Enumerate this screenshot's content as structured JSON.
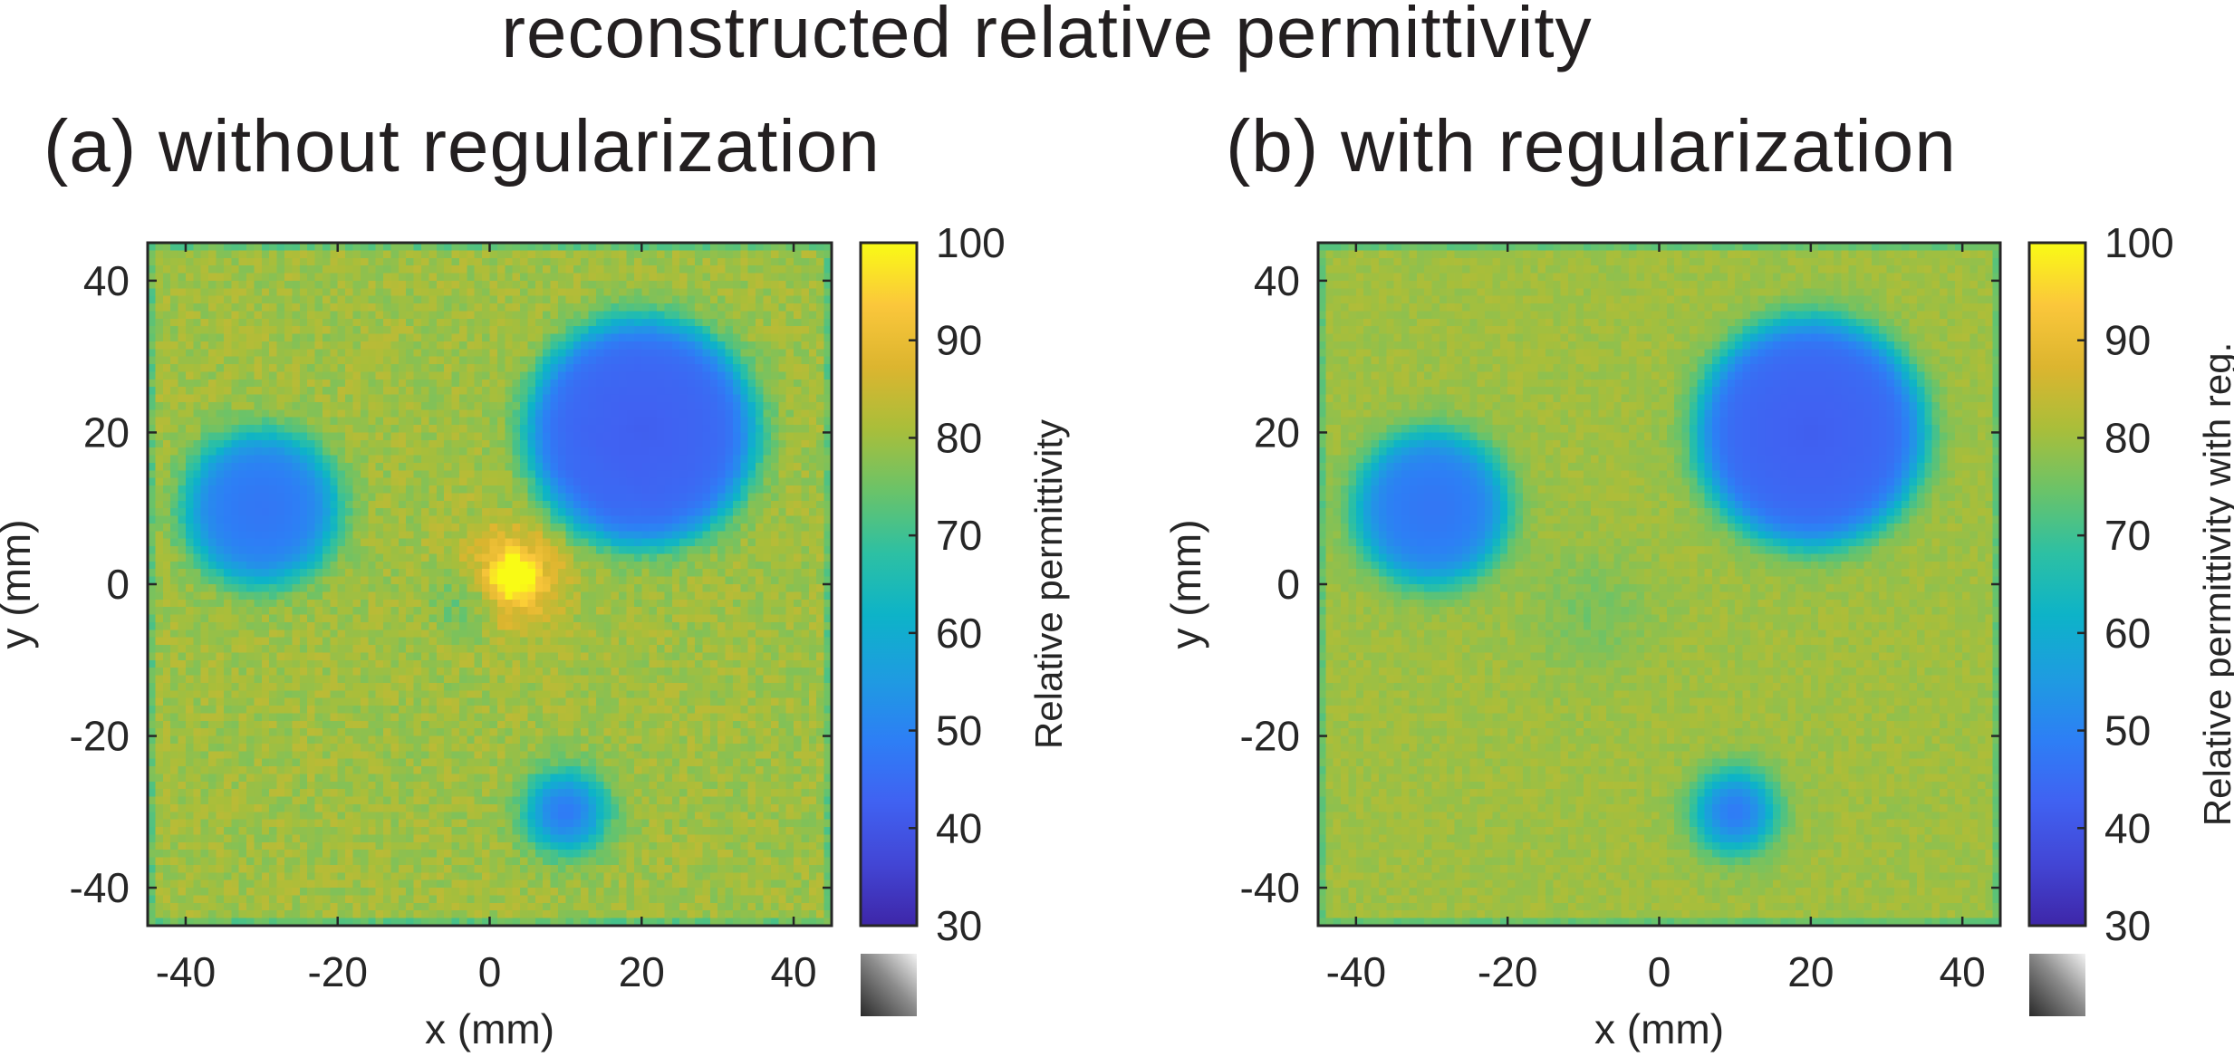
{
  "figure": {
    "title": "reconstructed relative permittivity"
  },
  "colormap": {
    "name": "parula",
    "stops": [
      "#3e26a8",
      "#4246d5",
      "#4062f2",
      "#2d7ff5",
      "#1e9ce0",
      "#0db3c8",
      "#2dc0a3",
      "#6ac369",
      "#a9be3a",
      "#dcb52f",
      "#fbc73b",
      "#f9fb15"
    ],
    "background_value": 80
  },
  "chart_data": [
    {
      "type": "heatmap",
      "panel_label": "(a) without regularization",
      "xlabel": "x (mm)",
      "ylabel": "y (mm)",
      "xlim": [
        -45,
        45
      ],
      "ylim": [
        -45,
        45
      ],
      "xticks": [
        -40,
        -20,
        0,
        20,
        40
      ],
      "yticks": [
        40,
        20,
        0,
        -20,
        -40
      ],
      "colorbar": {
        "label": "Relative permittivity",
        "range": [
          30,
          100
        ],
        "ticks": [
          100,
          90,
          80,
          70,
          60,
          50,
          40,
          30
        ]
      },
      "background": 80,
      "inclusions": [
        {
          "cx": -30,
          "cy": 10,
          "r": 10,
          "value": 50
        },
        {
          "cx": 20,
          "cy": 20,
          "r": 15,
          "value": 45
        },
        {
          "cx": 10,
          "cy": -30,
          "r": 5,
          "value": 50
        }
      ],
      "artifact": {
        "cx": 3,
        "cy": 1,
        "peak": 100,
        "low": 68
      }
    },
    {
      "type": "heatmap",
      "panel_label": "(b) with regularization",
      "xlabel": "x (mm)",
      "ylabel": "y (mm)",
      "xlim": [
        -45,
        45
      ],
      "ylim": [
        -45,
        45
      ],
      "xticks": [
        -40,
        -20,
        0,
        20,
        40
      ],
      "yticks": [
        40,
        20,
        0,
        -20,
        -40
      ],
      "colorbar": {
        "label": "Relative permittivity with reg.",
        "range": [
          30,
          100
        ],
        "ticks": [
          100,
          90,
          80,
          70,
          60,
          50,
          40,
          30
        ]
      },
      "background": 80,
      "inclusions": [
        {
          "cx": -30,
          "cy": 10,
          "r": 10,
          "value": 50
        },
        {
          "cx": 20,
          "cy": 20,
          "r": 15,
          "value": 45
        },
        {
          "cx": 10,
          "cy": -30,
          "r": 5,
          "value": 50
        }
      ],
      "artifact": {
        "cx": -9,
        "cy": -4,
        "peak": 76,
        "low": 76
      }
    }
  ]
}
